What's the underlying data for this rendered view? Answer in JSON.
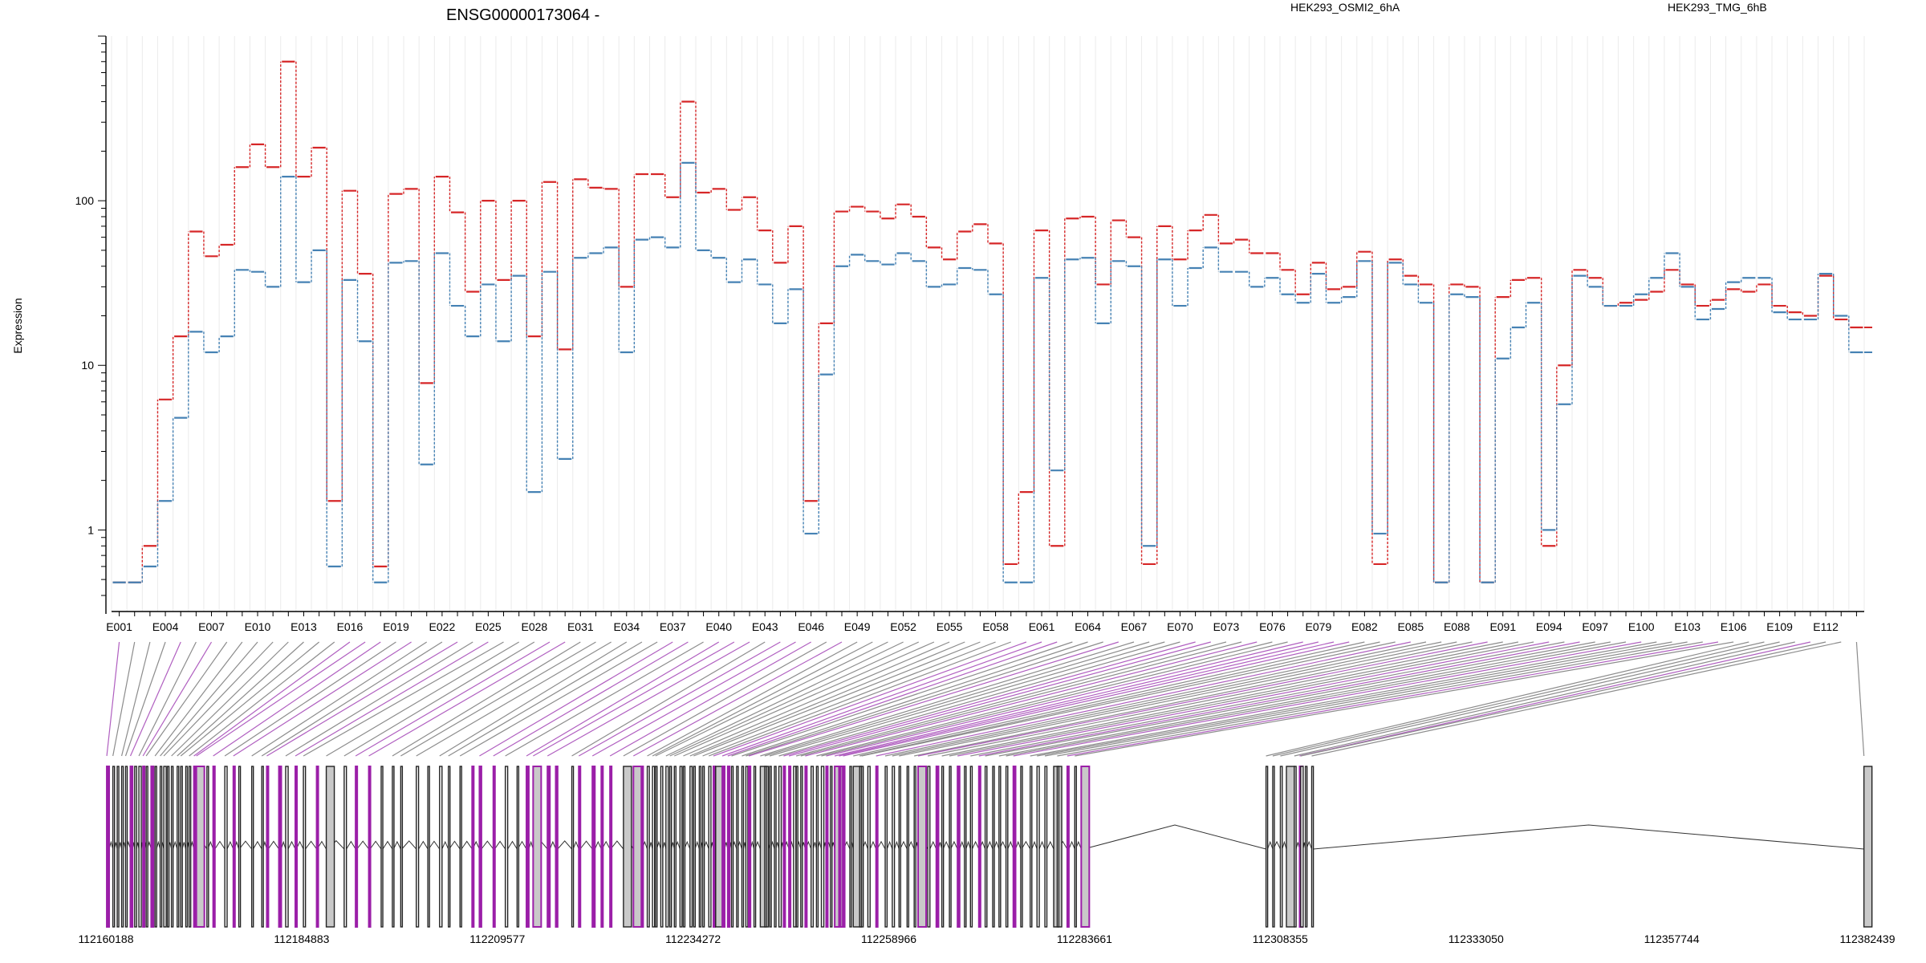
{
  "chart_data": {
    "type": "line",
    "title": "ENSG00000173064 -",
    "ylabel": "Expression",
    "xlabel": "",
    "y_scale": "log",
    "ylim": [
      0.4,
      1000
    ],
    "y_ticks": [
      {
        "value": 1,
        "label": "1"
      },
      {
        "value": 10,
        "label": "10"
      },
      {
        "value": 100,
        "label": "100"
      }
    ],
    "grid": "vertical lines at each exon",
    "legend_placement": "top",
    "exon_tick_labels": [
      "E001",
      "E004",
      "E007",
      "E010",
      "E013",
      "E016",
      "E019",
      "E022",
      "E025",
      "E028",
      "E031",
      "E034",
      "E037",
      "E040",
      "E043",
      "E046",
      "E049",
      "E052",
      "E055",
      "E058",
      "E061",
      "E064",
      "E067",
      "E070",
      "E073",
      "E076",
      "E079",
      "E082",
      "E085",
      "E088",
      "E091",
      "E094",
      "E097",
      "E100",
      "E103",
      "E106",
      "E109",
      "E112"
    ],
    "series": [
      {
        "name": "HEK293_OSMI2_6hA",
        "color": "#d62728",
        "values": [
          0.48,
          0.48,
          0.8,
          6.2,
          15,
          65,
          46,
          54,
          160,
          220,
          160,
          700,
          140,
          210,
          1.5,
          115,
          36,
          0.6,
          110,
          118,
          7.8,
          140,
          85,
          28,
          100,
          33,
          100,
          15,
          130,
          12.5,
          135,
          120,
          118,
          30,
          145,
          145,
          105,
          400,
          112,
          118,
          88,
          105,
          66,
          42,
          70,
          1.5,
          18,
          86,
          92,
          86,
          78,
          95,
          80,
          52,
          44,
          65,
          72,
          55,
          0.62,
          1.7,
          66,
          0.8,
          78,
          80,
          31,
          76,
          60,
          0.62,
          70,
          44,
          66,
          82,
          55,
          58,
          48,
          48,
          38,
          27,
          42,
          29,
          30,
          49,
          0.62,
          44,
          35,
          31,
          0.48,
          31,
          30,
          0.48,
          26,
          33,
          34,
          0.8,
          10,
          38,
          34,
          23,
          24,
          25,
          28,
          38,
          31,
          23,
          25,
          29,
          28,
          31,
          23,
          21,
          20,
          35,
          19,
          17
        ]
      },
      {
        "name": "HEK293_TMG_6hB",
        "color": "#4682b4",
        "values": [
          0.48,
          0.48,
          0.6,
          1.5,
          4.8,
          16,
          12,
          15,
          38,
          37,
          30,
          140,
          32,
          50,
          0.6,
          33,
          14,
          0.48,
          42,
          43,
          2.5,
          48,
          23,
          15,
          31,
          14,
          35,
          1.7,
          37,
          2.7,
          45,
          48,
          52,
          12,
          58,
          60,
          52,
          170,
          50,
          45,
          32,
          44,
          31,
          18,
          29,
          0.95,
          8.8,
          40,
          47,
          43,
          41,
          48,
          43,
          30,
          31,
          39,
          38,
          27,
          0.48,
          0.48,
          34,
          2.3,
          44,
          45,
          18,
          43,
          40,
          0.8,
          44,
          23,
          39,
          52,
          37,
          37,
          30,
          34,
          27,
          24,
          36,
          24,
          26,
          43,
          0.95,
          42,
          31,
          24,
          0.48,
          27,
          26,
          0.48,
          11,
          17,
          24,
          1,
          5.8,
          35,
          30,
          23,
          23,
          27,
          34,
          48,
          30,
          19,
          22,
          32,
          34,
          34,
          21,
          19,
          19,
          36,
          20,
          12
        ]
      }
    ],
    "genomic_axis": {
      "tick_labels": [
        "112160188",
        "112184883",
        "112209577",
        "112234272",
        "112258966",
        "112283661",
        "112308355",
        "112333050",
        "112357744",
        "112382439"
      ],
      "range": [
        112160188,
        112382439
      ]
    },
    "exon_type_colors": {
      "known": "#808080",
      "novel": "#9b1fa8",
      "fill": "#c9c9c9"
    }
  }
}
